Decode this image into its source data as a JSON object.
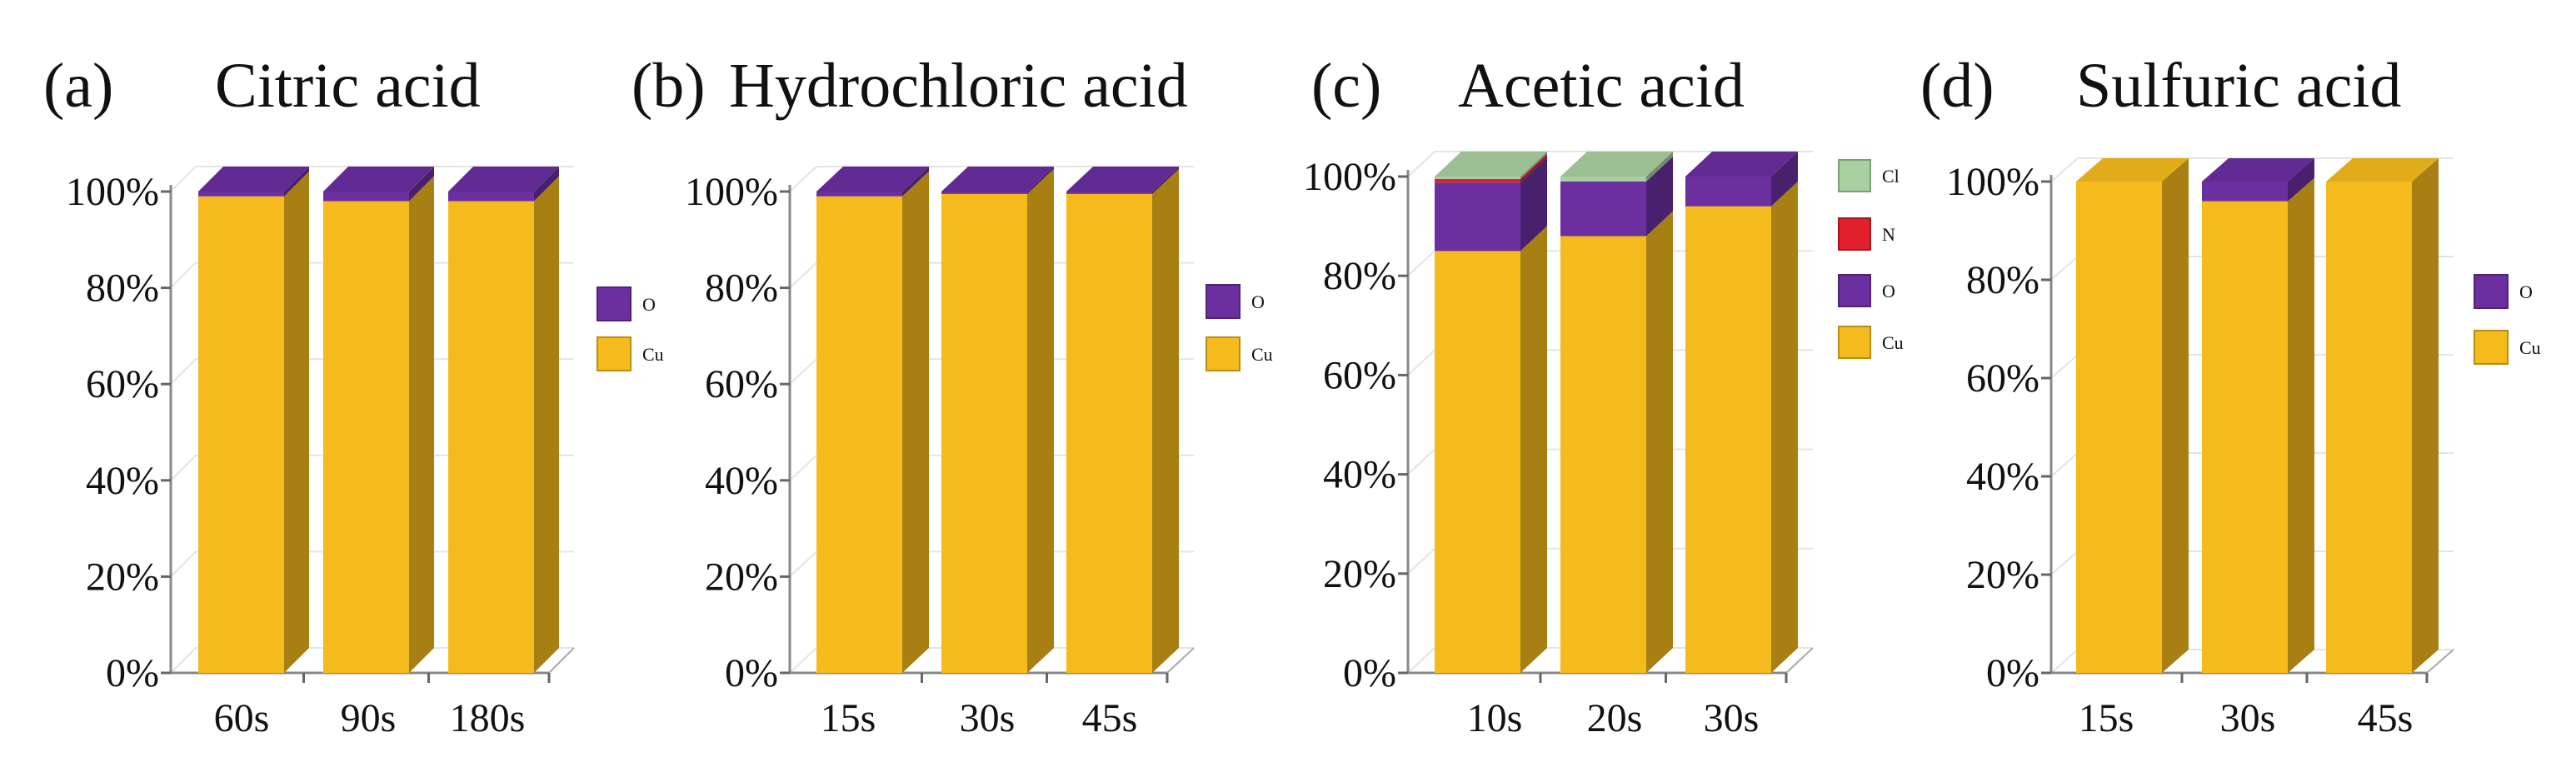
{
  "figure": {
    "panels": [
      {
        "letter": "(a)",
        "title": "Citric acid"
      },
      {
        "letter": "(b)",
        "title": "Hydrochloric acid"
      },
      {
        "letter": "(c)",
        "title": "Acetic acid"
      },
      {
        "letter": "(d)",
        "title": "Sulfuric acid"
      }
    ]
  },
  "colors": {
    "Cu": "#F5BB1C",
    "O": "#6B2FA0",
    "N": "#E0202A",
    "Cl": "#A8CFA0"
  },
  "chart_data": [
    {
      "type": "bar",
      "stacked": true,
      "panel": "(a)",
      "title": "Citric acid",
      "categories": [
        "60s",
        "90s",
        "180s"
      ],
      "series": [
        {
          "name": "Cu",
          "values": [
            99,
            98,
            98
          ]
        },
        {
          "name": "O",
          "values": [
            1,
            2,
            2
          ]
        }
      ],
      "legend": [
        "O",
        "Cu"
      ],
      "ylim": [
        0,
        100
      ],
      "yticks": [
        "0%",
        "20%",
        "40%",
        "60%",
        "80%",
        "100%"
      ],
      "xlabel": "",
      "ylabel": ""
    },
    {
      "type": "bar",
      "stacked": true,
      "panel": "(b)",
      "title": "Hydrochloric acid",
      "categories": [
        "15s",
        "30s",
        "45s"
      ],
      "series": [
        {
          "name": "Cu",
          "values": [
            99,
            99.5,
            99.5
          ]
        },
        {
          "name": "O",
          "values": [
            1,
            0.5,
            0.5
          ]
        }
      ],
      "legend": [
        "O",
        "Cu"
      ],
      "ylim": [
        0,
        100
      ],
      "yticks": [
        "0%",
        "20%",
        "40%",
        "60%",
        "80%",
        "100%"
      ],
      "xlabel": "",
      "ylabel": ""
    },
    {
      "type": "bar",
      "stacked": true,
      "panel": "(c)",
      "title": "Acetic acid",
      "categories": [
        "10s",
        "20s",
        "30s"
      ],
      "series": [
        {
          "name": "Cu",
          "values": [
            85,
            88,
            94
          ]
        },
        {
          "name": "O",
          "values": [
            13.8,
            11,
            6
          ]
        },
        {
          "name": "N",
          "values": [
            0.7,
            0,
            0
          ]
        },
        {
          "name": "Cl",
          "values": [
            0.5,
            1,
            0
          ]
        }
      ],
      "legend": [
        "Cl",
        "N",
        "O",
        "Cu"
      ],
      "ylim": [
        0,
        100
      ],
      "yticks": [
        "0%",
        "20%",
        "40%",
        "60%",
        "80%",
        "100%"
      ],
      "xlabel": "",
      "ylabel": ""
    },
    {
      "type": "bar",
      "stacked": true,
      "panel": "(d)",
      "title": "Sulfuric acid",
      "categories": [
        "15s",
        "30s",
        "45s"
      ],
      "series": [
        {
          "name": "Cu",
          "values": [
            100,
            96,
            100
          ]
        },
        {
          "name": "O",
          "values": [
            0,
            4,
            0
          ]
        }
      ],
      "legend": [
        "O",
        "Cu"
      ],
      "ylim": [
        0,
        100
      ],
      "yticks": [
        "0%",
        "20%",
        "40%",
        "60%",
        "80%",
        "100%"
      ],
      "xlabel": "",
      "ylabel": ""
    }
  ]
}
